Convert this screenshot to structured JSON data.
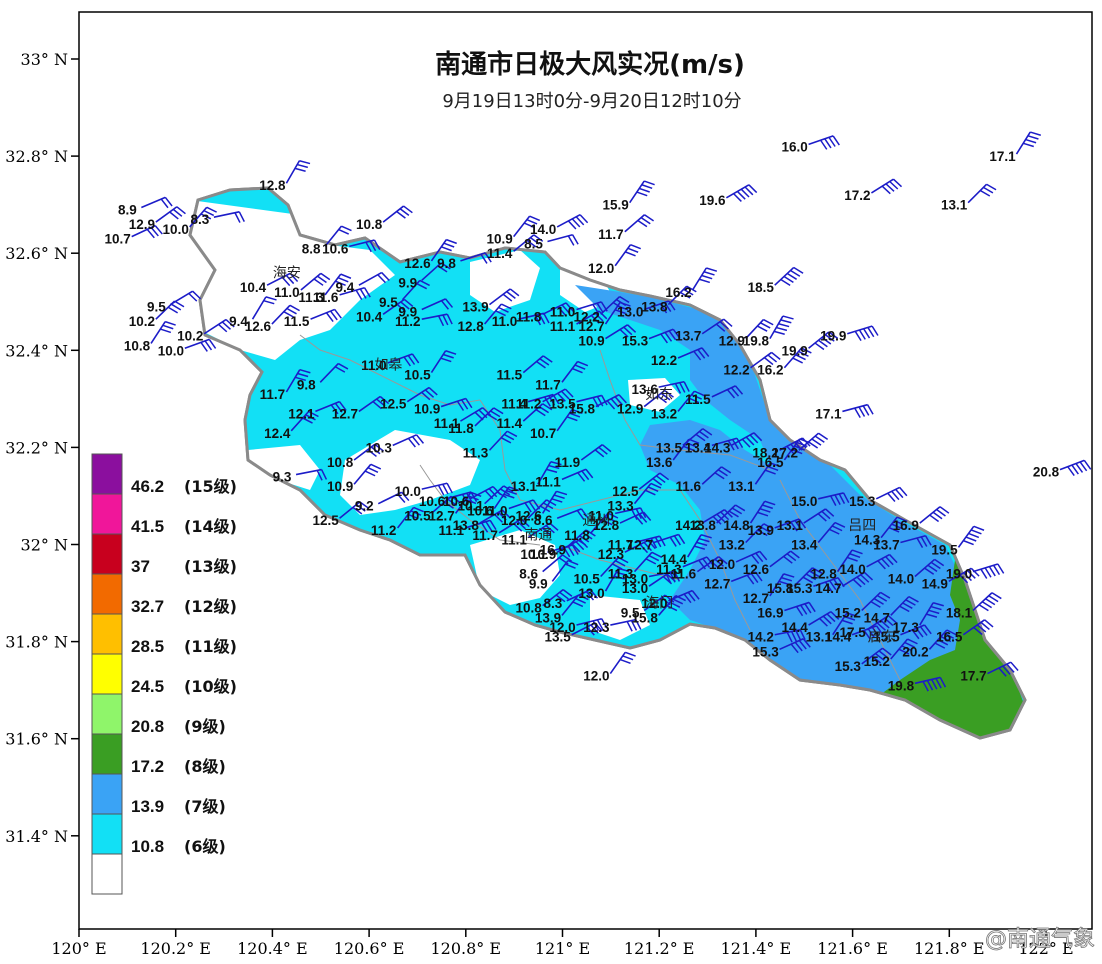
{
  "title": "南通市日极大风实况(m/s)",
  "subtitle": "9月19日13时0分-9月20日12时10分",
  "watermark": "@南通气象",
  "axes": {
    "x_ticks": [
      "120° E",
      "120.2° E",
      "120.4° E",
      "120.6° E",
      "120.8° E",
      "121° E",
      "121.2° E",
      "121.4° E",
      "121.6° E",
      "121.8° E",
      "122° E"
    ],
    "y_ticks": [
      "33° N",
      "32.8° N",
      "32.6° N",
      "32.4° N",
      "32.2° N",
      "32° N",
      "31.8° N",
      "31.6° N",
      "31.4° N"
    ],
    "lon_range": [
      120.0,
      122.05
    ],
    "lat_range": [
      31.2,
      33.1
    ]
  },
  "legend": [
    {
      "value": "46.2",
      "level": "(15级)",
      "color": "#8b0f9e"
    },
    {
      "value": "41.5",
      "level": "(14级)",
      "color": "#f0169a"
    },
    {
      "value": "37",
      "level": "(13级)",
      "color": "#c8001e"
    },
    {
      "value": "32.7",
      "level": "(12级)",
      "color": "#f26a00"
    },
    {
      "value": "28.5",
      "level": "(11级)",
      "color": "#ffbf00"
    },
    {
      "value": "24.5",
      "level": "(10级)",
      "color": "#ffff00"
    },
    {
      "value": "20.8",
      "level": "(9级)",
      "color": "#8ff56a"
    },
    {
      "value": "17.2",
      "level": "(8级)",
      "color": "#3a9e23"
    },
    {
      "value": "13.9",
      "level": "(7级)",
      "color": "#3aa3f5"
    },
    {
      "value": "10.8",
      "level": "(6级)",
      "color": "#12e0f5"
    },
    {
      "value": "",
      "level": "",
      "color": "#ffffff"
    }
  ],
  "places": [
    {
      "name": "海安",
      "lon": 120.43,
      "lat": 32.55
    },
    {
      "name": "如皋",
      "lon": 120.64,
      "lat": 32.36
    },
    {
      "name": "如东",
      "lon": 121.2,
      "lat": 32.3
    },
    {
      "name": "南通",
      "lon": 120.95,
      "lat": 32.01
    },
    {
      "name": "通州",
      "lon": 121.07,
      "lat": 32.04
    },
    {
      "name": "海门",
      "lon": 121.2,
      "lat": 31.87
    },
    {
      "name": "启东",
      "lon": 121.66,
      "lat": 31.8
    },
    {
      "name": "吕四",
      "lon": 121.62,
      "lat": 32.03
    }
  ],
  "stations": [
    {
      "lon": 120.4,
      "lat": 32.74,
      "v": "12.8"
    },
    {
      "lon": 120.1,
      "lat": 32.69,
      "v": "8.9"
    },
    {
      "lon": 120.13,
      "lat": 32.66,
      "v": "12.9"
    },
    {
      "lon": 120.2,
      "lat": 32.65,
      "v": "10.0"
    },
    {
      "lon": 120.25,
      "lat": 32.67,
      "v": "8.3"
    },
    {
      "lon": 120.08,
      "lat": 32.63,
      "v": "10.7"
    },
    {
      "lon": 120.6,
      "lat": 32.66,
      "v": "10.8"
    },
    {
      "lon": 120.48,
      "lat": 32.61,
      "v": "8.8"
    },
    {
      "lon": 120.53,
      "lat": 32.61,
      "v": "10.6"
    },
    {
      "lon": 120.36,
      "lat": 32.53,
      "v": "10.4"
    },
    {
      "lon": 120.43,
      "lat": 32.52,
      "v": "11.0"
    },
    {
      "lon": 120.48,
      "lat": 32.51,
      "v": "11.3"
    },
    {
      "lon": 120.51,
      "lat": 32.51,
      "v": "11.6"
    },
    {
      "lon": 120.55,
      "lat": 32.53,
      "v": "9.4"
    },
    {
      "lon": 120.68,
      "lat": 32.54,
      "v": "9.9"
    },
    {
      "lon": 120.7,
      "lat": 32.58,
      "v": "12.6"
    },
    {
      "lon": 120.76,
      "lat": 32.58,
      "v": "9.8"
    },
    {
      "lon": 120.16,
      "lat": 32.49,
      "v": "9.5"
    },
    {
      "lon": 120.13,
      "lat": 32.46,
      "v": "10.2"
    },
    {
      "lon": 120.12,
      "lat": 32.41,
      "v": "10.8"
    },
    {
      "lon": 120.19,
      "lat": 32.4,
      "v": "10.0"
    },
    {
      "lon": 120.23,
      "lat": 32.43,
      "v": "10.2"
    },
    {
      "lon": 120.37,
      "lat": 32.45,
      "v": "12.6"
    },
    {
      "lon": 120.33,
      "lat": 32.46,
      "v": "9.4"
    },
    {
      "lon": 120.45,
      "lat": 32.46,
      "v": "11.5"
    },
    {
      "lon": 120.6,
      "lat": 32.47,
      "v": "10.4"
    },
    {
      "lon": 120.64,
      "lat": 32.5,
      "v": "9.5"
    },
    {
      "lon": 120.68,
      "lat": 32.46,
      "v": "11.2"
    },
    {
      "lon": 120.68,
      "lat": 32.48,
      "v": "9.9"
    },
    {
      "lon": 120.82,
      "lat": 32.49,
      "v": "13.9"
    },
    {
      "lon": 120.81,
      "lat": 32.45,
      "v": "12.8"
    },
    {
      "lon": 120.88,
      "lat": 32.46,
      "v": "11.0"
    },
    {
      "lon": 120.93,
      "lat": 32.47,
      "v": "11.8"
    },
    {
      "lon": 120.87,
      "lat": 32.6,
      "v": "11.4"
    },
    {
      "lon": 120.87,
      "lat": 32.63,
      "v": "10.9"
    },
    {
      "lon": 120.94,
      "lat": 32.62,
      "v": "8.5"
    },
    {
      "lon": 120.96,
      "lat": 32.65,
      "v": "14.0"
    },
    {
      "lon": 121.1,
      "lat": 32.64,
      "v": "11.7"
    },
    {
      "lon": 121.08,
      "lat": 32.57,
      "v": "12.0"
    },
    {
      "lon": 121.0,
      "lat": 32.48,
      "v": "11.0"
    },
    {
      "lon": 121.0,
      "lat": 32.45,
      "v": "11.1"
    },
    {
      "lon": 121.05,
      "lat": 32.47,
      "v": "12.2"
    },
    {
      "lon": 121.06,
      "lat": 32.45,
      "v": "12.7"
    },
    {
      "lon": 121.14,
      "lat": 32.48,
      "v": "13.0"
    },
    {
      "lon": 121.06,
      "lat": 32.42,
      "v": "10.9"
    },
    {
      "lon": 121.19,
      "lat": 32.49,
      "v": "13.8"
    },
    {
      "lon": 121.24,
      "lat": 32.52,
      "v": "16.2"
    },
    {
      "lon": 121.15,
      "lat": 32.42,
      "v": "15.3"
    },
    {
      "lon": 121.26,
      "lat": 32.43,
      "v": "13.7"
    },
    {
      "lon": 121.35,
      "lat": 32.42,
      "v": "12.9"
    },
    {
      "lon": 121.4,
      "lat": 32.42,
      "v": "19.8"
    },
    {
      "lon": 121.21,
      "lat": 32.38,
      "v": "12.2"
    },
    {
      "lon": 121.36,
      "lat": 32.36,
      "v": "12.2"
    },
    {
      "lon": 121.43,
      "lat": 32.36,
      "v": "16.2"
    },
    {
      "lon": 121.17,
      "lat": 32.32,
      "v": "13.6"
    },
    {
      "lon": 121.28,
      "lat": 32.3,
      "v": "11.5"
    },
    {
      "lon": 121.14,
      "lat": 32.28,
      "v": "12.9"
    },
    {
      "lon": 121.21,
      "lat": 32.27,
      "v": "13.2"
    },
    {
      "lon": 121.0,
      "lat": 32.29,
      "v": "13.5"
    },
    {
      "lon": 121.04,
      "lat": 32.28,
      "v": "15.8"
    },
    {
      "lon": 120.89,
      "lat": 32.35,
      "v": "11.5"
    },
    {
      "lon": 120.97,
      "lat": 32.33,
      "v": "11.7"
    },
    {
      "lon": 120.9,
      "lat": 32.29,
      "v": "11.4"
    },
    {
      "lon": 120.93,
      "lat": 32.29,
      "v": "11.2"
    },
    {
      "lon": 120.89,
      "lat": 32.25,
      "v": "11.4"
    },
    {
      "lon": 120.96,
      "lat": 32.23,
      "v": "10.7"
    },
    {
      "lon": 120.72,
      "lat": 32.28,
      "v": "10.9"
    },
    {
      "lon": 120.76,
      "lat": 32.25,
      "v": "11.1"
    },
    {
      "lon": 120.79,
      "lat": 32.24,
      "v": "11.8"
    },
    {
      "lon": 120.7,
      "lat": 32.35,
      "v": "10.5"
    },
    {
      "lon": 120.61,
      "lat": 32.37,
      "v": "11.0"
    },
    {
      "lon": 120.65,
      "lat": 32.29,
      "v": "12.5"
    },
    {
      "lon": 120.47,
      "lat": 32.33,
      "v": "9.8"
    },
    {
      "lon": 120.4,
      "lat": 32.31,
      "v": "11.7"
    },
    {
      "lon": 120.46,
      "lat": 32.27,
      "v": "12.1"
    },
    {
      "lon": 120.55,
      "lat": 32.27,
      "v": "12.7"
    },
    {
      "lon": 120.41,
      "lat": 32.23,
      "v": "12.4"
    },
    {
      "lon": 120.42,
      "lat": 32.14,
      "v": "9.3"
    },
    {
      "lon": 120.62,
      "lat": 32.2,
      "v": "10.3"
    },
    {
      "lon": 120.54,
      "lat": 32.17,
      "v": "10.8"
    },
    {
      "lon": 120.54,
      "lat": 32.12,
      "v": "10.9"
    },
    {
      "lon": 120.68,
      "lat": 32.11,
      "v": "10.0"
    },
    {
      "lon": 120.59,
      "lat": 32.08,
      "v": "9.2"
    },
    {
      "lon": 120.51,
      "lat": 32.05,
      "v": "12.5"
    },
    {
      "lon": 120.63,
      "lat": 32.03,
      "v": "11.2"
    },
    {
      "lon": 120.73,
      "lat": 32.09,
      "v": "10.6"
    },
    {
      "lon": 120.78,
      "lat": 32.09,
      "v": "10.6"
    },
    {
      "lon": 120.7,
      "lat": 32.06,
      "v": "10.5"
    },
    {
      "lon": 120.75,
      "lat": 32.06,
      "v": "12.7"
    },
    {
      "lon": 120.77,
      "lat": 32.03,
      "v": "11.1"
    },
    {
      "lon": 120.8,
      "lat": 32.04,
      "v": "13.8"
    },
    {
      "lon": 120.81,
      "lat": 32.08,
      "v": "10.1"
    },
    {
      "lon": 120.83,
      "lat": 32.07,
      "v": "10.6"
    },
    {
      "lon": 120.86,
      "lat": 32.07,
      "v": "11.0"
    },
    {
      "lon": 120.84,
      "lat": 32.02,
      "v": "11.7"
    },
    {
      "lon": 120.9,
      "lat": 32.05,
      "v": "12.0"
    },
    {
      "lon": 120.93,
      "lat": 32.06,
      "v": "12.6"
    },
    {
      "lon": 120.96,
      "lat": 32.05,
      "v": "8.6"
    },
    {
      "lon": 120.9,
      "lat": 32.01,
      "v": "11.1"
    },
    {
      "lon": 120.82,
      "lat": 32.19,
      "v": "11.3"
    },
    {
      "lon": 120.92,
      "lat": 32.12,
      "v": "13.1"
    },
    {
      "lon": 120.97,
      "lat": 32.13,
      "v": "11.1"
    },
    {
      "lon": 121.01,
      "lat": 32.17,
      "v": "11.9"
    },
    {
      "lon": 121.03,
      "lat": 32.02,
      "v": "11.8"
    },
    {
      "lon": 121.08,
      "lat": 32.06,
      "v": "11.0"
    },
    {
      "lon": 121.09,
      "lat": 32.04,
      "v": "12.8"
    },
    {
      "lon": 121.13,
      "lat": 32.11,
      "v": "12.5"
    },
    {
      "lon": 121.12,
      "lat": 32.08,
      "v": "13.3"
    },
    {
      "lon": 121.12,
      "lat": 32.0,
      "v": "11.7"
    },
    {
      "lon": 121.1,
      "lat": 31.98,
      "v": "12.3"
    },
    {
      "lon": 121.22,
      "lat": 32.2,
      "v": "13.5"
    },
    {
      "lon": 121.2,
      "lat": 32.17,
      "v": "13.6"
    },
    {
      "lon": 121.28,
      "lat": 32.2,
      "v": "13.4"
    },
    {
      "lon": 121.32,
      "lat": 32.2,
      "v": "14.3"
    },
    {
      "lon": 121.26,
      "lat": 32.12,
      "v": "11.6"
    },
    {
      "lon": 121.37,
      "lat": 32.12,
      "v": "13.1"
    },
    {
      "lon": 121.16,
      "lat": 32.0,
      "v": "12.7"
    },
    {
      "lon": 121.26,
      "lat": 32.04,
      "v": "14.2"
    },
    {
      "lon": 121.29,
      "lat": 32.04,
      "v": "13.8"
    },
    {
      "lon": 121.36,
      "lat": 32.04,
      "v": "14.8"
    },
    {
      "lon": 121.41,
      "lat": 32.03,
      "v": "13.9"
    },
    {
      "lon": 121.47,
      "lat": 32.04,
      "v": "13.1"
    },
    {
      "lon": 121.35,
      "lat": 32.0,
      "v": "13.2"
    },
    {
      "lon": 121.23,
      "lat": 31.97,
      "v": "14.4"
    },
    {
      "lon": 121.22,
      "lat": 31.95,
      "v": "11.3"
    },
    {
      "lon": 121.25,
      "lat": 31.94,
      "v": "11.6"
    },
    {
      "lon": 121.12,
      "lat": 31.94,
      "v": "11.3"
    },
    {
      "lon": 121.15,
      "lat": 31.93,
      "v": "13.0"
    },
    {
      "lon": 121.33,
      "lat": 31.96,
      "v": "12.0"
    },
    {
      "lon": 121.4,
      "lat": 31.95,
      "v": "12.6"
    },
    {
      "lon": 121.5,
      "lat": 32.0,
      "v": "13.4"
    },
    {
      "lon": 121.5,
      "lat": 32.09,
      "v": "15.0"
    },
    {
      "lon": 121.62,
      "lat": 32.09,
      "v": "15.3"
    },
    {
      "lon": 121.71,
      "lat": 32.04,
      "v": "16.9"
    },
    {
      "lon": 121.63,
      "lat": 32.01,
      "v": "14.3"
    },
    {
      "lon": 121.67,
      "lat": 32.0,
      "v": "13.7"
    },
    {
      "lon": 121.6,
      "lat": 31.95,
      "v": "14.0"
    },
    {
      "lon": 121.7,
      "lat": 31.93,
      "v": "14.0"
    },
    {
      "lon": 121.79,
      "lat": 31.99,
      "v": "19.5"
    },
    {
      "lon": 121.82,
      "lat": 31.94,
      "v": "19.0"
    },
    {
      "lon": 121.77,
      "lat": 31.92,
      "v": "14.9"
    },
    {
      "lon": 121.82,
      "lat": 31.86,
      "v": "18.1"
    },
    {
      "lon": 121.54,
      "lat": 31.94,
      "v": "12.8"
    },
    {
      "lon": 121.49,
      "lat": 31.91,
      "v": "15.3"
    },
    {
      "lon": 121.55,
      "lat": 31.91,
      "v": "14.7"
    },
    {
      "lon": 121.45,
      "lat": 31.91,
      "v": "15.8"
    },
    {
      "lon": 121.4,
      "lat": 31.89,
      "v": "12.7"
    },
    {
      "lon": 121.32,
      "lat": 31.92,
      "v": "12.7"
    },
    {
      "lon": 121.15,
      "lat": 31.91,
      "v": "13.0"
    },
    {
      "lon": 121.05,
      "lat": 31.93,
      "v": "10.5"
    },
    {
      "lon": 121.06,
      "lat": 31.9,
      "v": "13.0"
    },
    {
      "lon": 121.19,
      "lat": 31.88,
      "v": "12.0"
    },
    {
      "lon": 121.14,
      "lat": 31.86,
      "v": "9.5"
    },
    {
      "lon": 121.17,
      "lat": 31.85,
      "v": "15.8"
    },
    {
      "lon": 121.07,
      "lat": 31.83,
      "v": "12.3"
    },
    {
      "lon": 120.98,
      "lat": 31.88,
      "v": "8.3"
    },
    {
      "lon": 120.93,
      "lat": 31.87,
      "v": "10.8"
    },
    {
      "lon": 120.97,
      "lat": 31.85,
      "v": "13.9"
    },
    {
      "lon": 121.0,
      "lat": 31.83,
      "v": "12.0"
    },
    {
      "lon": 120.99,
      "lat": 31.81,
      "v": "13.5"
    },
    {
      "lon": 120.93,
      "lat": 31.94,
      "v": "8.6"
    },
    {
      "lon": 120.95,
      "lat": 31.92,
      "v": "9.9"
    },
    {
      "lon": 120.94,
      "lat": 31.98,
      "v": "10.1"
    },
    {
      "lon": 120.96,
      "lat": 31.98,
      "v": "10.9"
    },
    {
      "lon": 120.98,
      "lat": 31.99,
      "v": "16.9"
    },
    {
      "lon": 121.07,
      "lat": 31.73,
      "v": "12.0"
    },
    {
      "lon": 121.43,
      "lat": 31.86,
      "v": "16.9"
    },
    {
      "lon": 121.48,
      "lat": 31.83,
      "v": "14.4"
    },
    {
      "lon": 121.59,
      "lat": 31.86,
      "v": "15.2"
    },
    {
      "lon": 121.53,
      "lat": 31.81,
      "v": "13.1"
    },
    {
      "lon": 121.57,
      "lat": 31.81,
      "v": "14.4"
    },
    {
      "lon": 121.6,
      "lat": 31.82,
      "v": "17.5"
    },
    {
      "lon": 121.65,
      "lat": 31.85,
      "v": "14.7"
    },
    {
      "lon": 121.71,
      "lat": 31.83,
      "v": "17.3"
    },
    {
      "lon": 121.67,
      "lat": 31.81,
      "v": "15.5"
    },
    {
      "lon": 121.8,
      "lat": 31.81,
      "v": "16.5"
    },
    {
      "lon": 121.73,
      "lat": 31.78,
      "v": "20.2"
    },
    {
      "lon": 121.41,
      "lat": 31.81,
      "v": "14.2"
    },
    {
      "lon": 121.42,
      "lat": 31.78,
      "v": "15.3"
    },
    {
      "lon": 121.59,
      "lat": 31.75,
      "v": "15.3"
    },
    {
      "lon": 121.65,
      "lat": 31.76,
      "v": "15.2"
    },
    {
      "lon": 121.7,
      "lat": 31.71,
      "v": "19.8"
    },
    {
      "lon": 121.85,
      "lat": 31.73,
      "v": "17.7"
    },
    {
      "lon": 121.48,
      "lat": 32.4,
      "v": "19.9"
    },
    {
      "lon": 121.48,
      "lat": 32.4,
      "v": ""
    },
    {
      "lon": 121.55,
      "lat": 32.27,
      "v": "17.1"
    },
    {
      "lon": 121.42,
      "lat": 32.19,
      "v": "18.2"
    },
    {
      "lon": 121.46,
      "lat": 32.19,
      "v": "17.2"
    },
    {
      "lon": 121.43,
      "lat": 32.17,
      "v": "16.5"
    },
    {
      "lon": 121.56,
      "lat": 32.43,
      "v": "19.9"
    },
    {
      "lon": 121.31,
      "lat": 32.71,
      "v": "19.6"
    },
    {
      "lon": 121.41,
      "lat": 32.53,
      "v": "18.5"
    },
    {
      "lon": 121.11,
      "lat": 32.7,
      "v": "15.9"
    },
    {
      "lon": 121.48,
      "lat": 32.82,
      "v": "16.0"
    },
    {
      "lon": 121.61,
      "lat": 32.72,
      "v": "17.2"
    },
    {
      "lon": 121.81,
      "lat": 32.7,
      "v": "13.1"
    },
    {
      "lon": 121.91,
      "lat": 32.8,
      "v": "17.1"
    },
    {
      "lon": 122.0,
      "lat": 32.15,
      "v": "20.8"
    }
  ]
}
